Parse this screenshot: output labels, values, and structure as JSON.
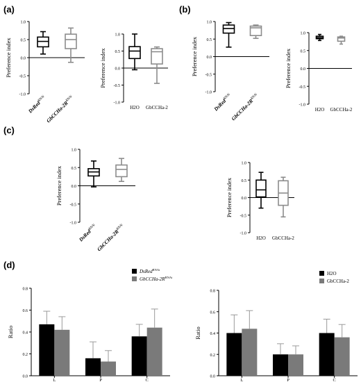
{
  "panel_labels": [
    "(a)",
    "(b)",
    "(c)",
    "(d)"
  ],
  "colors": {
    "black": "#000000",
    "gray": "#7a7a7a",
    "light_gray": "#8c8c8c",
    "errorbar": "#9a9a9a"
  },
  "chart_data": [
    {
      "id": "a-left",
      "panel": "(a)",
      "type": "box",
      "ylabel": "Preference index",
      "ylim": [
        -1.0,
        1.0
      ],
      "yticks": [
        "-1.0",
        "-0.5",
        "0.0",
        "0.5",
        "1.0"
      ],
      "zero_line": true,
      "categories": [
        {
          "label_main": "DsRed",
          "label_sup": "RNAi",
          "italic": true,
          "color": "#000000",
          "min": 0.1,
          "q1": 0.3,
          "median": 0.45,
          "q3": 0.57,
          "max": 0.72
        },
        {
          "label_main": "GbCCHa-2R",
          "label_sup": "RNAi",
          "italic": true,
          "color": "#8c8c8c",
          "min": -0.13,
          "q1": 0.25,
          "median": 0.5,
          "q3": 0.65,
          "max": 0.82
        }
      ]
    },
    {
      "id": "a-right",
      "panel": "(a)",
      "type": "box",
      "ylabel": "Preference index",
      "ylim": [
        -1.0,
        1.0
      ],
      "yticks": [
        "-1.0",
        "-0.5",
        "0.0",
        "0.5",
        "1.0"
      ],
      "zero_line": true,
      "categories": [
        {
          "label_main": "H2O",
          "label_sup": "",
          "italic": false,
          "color": "#000000",
          "min": -0.05,
          "q1": 0.28,
          "median": 0.5,
          "q3": 0.63,
          "max": 1.0
        },
        {
          "label_main": "GbCCHa-2",
          "label_sup": "",
          "italic": false,
          "color": "#8c8c8c",
          "min": -0.45,
          "q1": 0.12,
          "median": 0.48,
          "q3": 0.57,
          "max": 0.62
        }
      ]
    },
    {
      "id": "b-left",
      "panel": "(b)",
      "type": "box",
      "ylabel": "Preference index",
      "ylim": [
        -1.0,
        1.0
      ],
      "yticks": [
        "-1.0",
        "-0.5",
        "0.0",
        "0.5",
        "1.0"
      ],
      "zero_line": true,
      "categories": [
        {
          "label_main": "DsRed",
          "label_sup": "RNAi",
          "italic": true,
          "color": "#000000",
          "min": 0.27,
          "q1": 0.67,
          "median": 0.8,
          "q3": 0.9,
          "max": 0.97
        },
        {
          "label_main": "GbCCHa-2R",
          "label_sup": "RNAi",
          "italic": true,
          "color": "#8c8c8c",
          "min": 0.52,
          "q1": 0.6,
          "median": 0.82,
          "q3": 0.87,
          "max": 0.9
        }
      ]
    },
    {
      "id": "b-right",
      "panel": "(b)",
      "type": "box",
      "ylabel": "Preference index",
      "ylim": [
        -1.0,
        1.0
      ],
      "yticks": [
        "-1.0",
        "-0.5",
        "0.0",
        "0.5",
        "1.0"
      ],
      "zero_line": true,
      "categories": [
        {
          "label_main": "H2O",
          "label_sup": "",
          "italic": false,
          "color": "#000000",
          "min": 0.78,
          "q1": 0.83,
          "median": 0.86,
          "q3": 0.9,
          "max": 0.95
        },
        {
          "label_main": "GbCCHa-2",
          "label_sup": "",
          "italic": false,
          "color": "#8c8c8c",
          "min": 0.68,
          "q1": 0.76,
          "median": 0.85,
          "q3": 0.88,
          "max": 0.9
        }
      ]
    },
    {
      "id": "c-left",
      "panel": "(c)",
      "type": "box",
      "ylabel": "Preference index",
      "ylim": [
        -1.0,
        1.0
      ],
      "yticks": [
        "-1.0",
        "-0.5",
        "0.0",
        "0.5",
        "1.0"
      ],
      "zero_line": true,
      "categories": [
        {
          "label_main": "DsRed",
          "label_sup": "RNAi",
          "italic": true,
          "color": "#000000",
          "min": -0.03,
          "q1": 0.27,
          "median": 0.38,
          "q3": 0.47,
          "max": 0.68
        },
        {
          "label_main": "GbCCHa-2R",
          "label_sup": "RNAi",
          "italic": true,
          "color": "#8c8c8c",
          "min": 0.12,
          "q1": 0.25,
          "median": 0.45,
          "q3": 0.57,
          "max": 0.75
        }
      ]
    },
    {
      "id": "c-right",
      "panel": "(c)",
      "type": "box",
      "ylabel": "Preference index",
      "ylim": [
        -1.0,
        1.0
      ],
      "yticks": [
        "-1.0",
        "-0.5",
        "0.0",
        "0.5",
        "1.0"
      ],
      "zero_line": true,
      "categories": [
        {
          "label_main": "H2O",
          "label_sup": "",
          "italic": false,
          "color": "#000000",
          "min": -0.3,
          "q1": 0.02,
          "median": 0.22,
          "q3": 0.5,
          "max": 0.72
        },
        {
          "label_main": "GbCCHa-2",
          "label_sup": "",
          "italic": false,
          "color": "#8c8c8c",
          "min": -0.55,
          "q1": -0.22,
          "median": 0.13,
          "q3": 0.48,
          "max": 0.58
        }
      ]
    },
    {
      "id": "d-left",
      "panel": "(d)",
      "type": "bar",
      "ylabel": "Ratio",
      "ylim": [
        0,
        0.8
      ],
      "yticks": [
        "0.0",
        "0.2",
        "0.4",
        "0.6",
        "0.8"
      ],
      "categories": [
        "L",
        "P",
        "C"
      ],
      "legend_position": "top-right",
      "series": [
        {
          "name_main": "DsRed",
          "name_sup": "RNAi",
          "italic": true,
          "color": "#000000",
          "values": [
            0.47,
            0.16,
            0.36
          ],
          "errors": [
            0.12,
            0.15,
            0.11
          ]
        },
        {
          "name_main": "GbCCHa-2R",
          "name_sup": "RNAi",
          "italic": true,
          "color": "#7a7a7a",
          "values": [
            0.42,
            0.13,
            0.44
          ],
          "errors": [
            0.12,
            0.1,
            0.17
          ]
        }
      ]
    },
    {
      "id": "d-right",
      "panel": "(d)",
      "type": "bar",
      "ylabel": "Ratio",
      "ylim": [
        0,
        0.8
      ],
      "yticks": [
        "0.0",
        "0.2",
        "0.4",
        "0.6",
        "0.8"
      ],
      "categories": [
        "L",
        "P",
        "C"
      ],
      "legend_position": "top-right",
      "series": [
        {
          "name_main": "H2O",
          "name_sup": "",
          "italic": false,
          "color": "#000000",
          "values": [
            0.4,
            0.2,
            0.4
          ],
          "errors": [
            0.17,
            0.1,
            0.13
          ]
        },
        {
          "name_main": "GbCCHa-2",
          "name_sup": "",
          "italic": false,
          "color": "#7a7a7a",
          "values": [
            0.44,
            0.2,
            0.36
          ],
          "errors": [
            0.17,
            0.08,
            0.12
          ]
        }
      ]
    }
  ]
}
